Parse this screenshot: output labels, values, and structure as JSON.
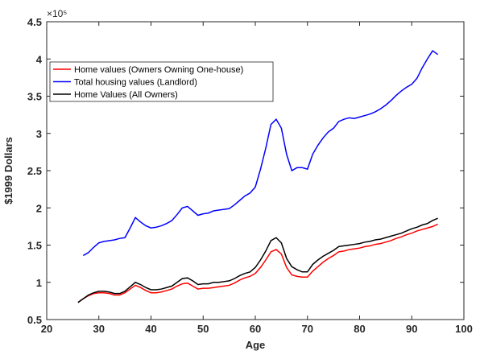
{
  "chart_data": {
    "type": "line",
    "xlabel": "Age",
    "ylabel": "$1999 Dollars",
    "y_multiplier": "×10⁵",
    "xlim": [
      20,
      100
    ],
    "xticks": [
      20,
      30,
      40,
      50,
      60,
      70,
      80,
      90,
      100
    ],
    "ylim": [
      0.5,
      4.5
    ],
    "yticks": [
      0.5,
      1,
      1.5,
      2,
      2.5,
      3,
      3.5,
      4,
      4.5
    ],
    "grid": false,
    "legend": "northwest",
    "x": [
      26,
      27,
      28,
      29,
      30,
      31,
      32,
      33,
      34,
      35,
      36,
      37,
      38,
      39,
      40,
      41,
      42,
      43,
      44,
      45,
      46,
      47,
      48,
      49,
      50,
      51,
      52,
      53,
      54,
      55,
      56,
      57,
      58,
      59,
      60,
      61,
      62,
      63,
      64,
      65,
      66,
      67,
      68,
      69,
      70,
      71,
      72,
      73,
      74,
      75,
      76,
      77,
      78,
      79,
      80,
      81,
      82,
      83,
      84,
      85,
      86,
      87,
      88,
      89,
      90,
      91,
      92,
      93,
      94,
      95
    ],
    "series": [
      {
        "name": "Home values (Owners Owning One-house)",
        "color": "#ff0000",
        "values": [
          0.73,
          0.78,
          0.82,
          0.85,
          0.86,
          0.86,
          0.85,
          0.83,
          0.83,
          0.86,
          0.91,
          0.96,
          0.93,
          0.89,
          0.86,
          0.86,
          0.87,
          0.89,
          0.91,
          0.95,
          0.98,
          0.99,
          0.95,
          0.91,
          0.92,
          0.92,
          0.93,
          0.94,
          0.95,
          0.96,
          0.99,
          1.03,
          1.06,
          1.08,
          1.12,
          1.2,
          1.3,
          1.41,
          1.44,
          1.38,
          1.2,
          1.1,
          1.08,
          1.07,
          1.07,
          1.15,
          1.21,
          1.27,
          1.32,
          1.36,
          1.41,
          1.42,
          1.44,
          1.45,
          1.46,
          1.48,
          1.49,
          1.51,
          1.52,
          1.54,
          1.56,
          1.59,
          1.61,
          1.64,
          1.66,
          1.69,
          1.71,
          1.73,
          1.75,
          1.78
        ]
      },
      {
        "name": "Total housing values (Landlord)",
        "color": "#0000ff",
        "values": [
          null,
          1.36,
          1.4,
          1.47,
          1.53,
          1.55,
          1.56,
          1.57,
          1.59,
          1.6,
          1.73,
          1.87,
          1.81,
          1.76,
          1.73,
          1.74,
          1.76,
          1.79,
          1.83,
          1.91,
          2.0,
          2.02,
          1.96,
          1.9,
          1.92,
          1.93,
          1.96,
          1.97,
          1.98,
          1.99,
          2.04,
          2.1,
          2.16,
          2.2,
          2.28,
          2.52,
          2.8,
          3.12,
          3.19,
          3.07,
          2.72,
          2.5,
          2.54,
          2.54,
          2.52,
          2.72,
          2.84,
          2.94,
          3.02,
          3.07,
          3.16,
          3.19,
          3.21,
          3.2,
          3.22,
          3.24,
          3.26,
          3.29,
          3.33,
          3.38,
          3.44,
          3.51,
          3.57,
          3.62,
          3.66,
          3.74,
          3.88,
          4.0,
          4.11,
          4.06
        ]
      },
      {
        "name": "Home Values (All Owners)",
        "color": "#000000",
        "values": [
          0.73,
          0.78,
          0.83,
          0.86,
          0.88,
          0.88,
          0.87,
          0.85,
          0.85,
          0.88,
          0.94,
          1.0,
          0.97,
          0.93,
          0.9,
          0.9,
          0.91,
          0.93,
          0.95,
          1.0,
          1.05,
          1.06,
          1.02,
          0.97,
          0.98,
          0.98,
          1.0,
          1.0,
          1.01,
          1.02,
          1.05,
          1.09,
          1.12,
          1.14,
          1.2,
          1.3,
          1.42,
          1.56,
          1.6,
          1.53,
          1.32,
          1.21,
          1.17,
          1.14,
          1.14,
          1.24,
          1.3,
          1.35,
          1.39,
          1.43,
          1.48,
          1.49,
          1.5,
          1.51,
          1.52,
          1.54,
          1.55,
          1.57,
          1.58,
          1.6,
          1.62,
          1.64,
          1.66,
          1.69,
          1.72,
          1.74,
          1.77,
          1.79,
          1.83,
          1.86
        ]
      }
    ]
  }
}
